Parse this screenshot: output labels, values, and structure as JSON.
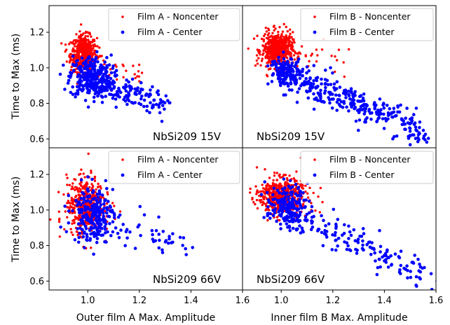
{
  "chart_data": {
    "type": "scatter",
    "layout": "2x2 grid, shared axes",
    "ylabel": "Time to Max (ms)",
    "xlabels": [
      "Outer film A Max. Amplitude",
      "Inner film B Max. Amplitude"
    ],
    "ylim": [
      0.55,
      1.35
    ],
    "yticks": [
      "0.6",
      "0.8",
      "1.0",
      "1.2"
    ],
    "ytick_values": [
      0.6,
      0.8,
      1.0,
      1.2
    ],
    "xlim": [
      0.85,
      1.6
    ],
    "xticks": [
      "1.0",
      "1.2",
      "1.4",
      "1.6"
    ],
    "xtick_values": [
      1.0,
      1.2,
      1.4,
      1.6
    ],
    "colors": {
      "noncenter": "#ff0000",
      "center": "#0000ff"
    },
    "legend_location": "upper right",
    "panels": [
      {
        "annotation": "NbSi209 15V",
        "legend": [
          "Film A - Noncenter",
          "Film A - Center"
        ],
        "series": [
          {
            "name": "Film A - Noncenter",
            "cluster": {
              "cx": 0.985,
              "cy": 1.08,
              "sx": 0.025,
              "sy": 0.05,
              "n": 520
            },
            "tail": {
              "x0": 0.95,
              "x1": 1.2,
              "y0": 1.05,
              "y1": 0.95,
              "n": 40
            }
          },
          {
            "name": "Film A - Center",
            "cluster": {
              "cx": 1.01,
              "cy": 0.95,
              "sx": 0.04,
              "sy": 0.06,
              "n": 260
            },
            "tail": {
              "x0": 1.0,
              "x1": 1.3,
              "y0": 0.92,
              "y1": 0.8,
              "n": 160
            }
          }
        ]
      },
      {
        "annotation": "NbSi209 15V",
        "legend": [
          "Film B - Noncenter",
          "Film B - Center"
        ],
        "series": [
          {
            "name": "Film B - Noncenter",
            "cluster": {
              "cx": 0.985,
              "cy": 1.1,
              "sx": 0.03,
              "sy": 0.05,
              "n": 560
            },
            "tail": {
              "x0": 1.0,
              "x1": 1.25,
              "y0": 1.08,
              "y1": 1.06,
              "n": 30
            }
          },
          {
            "name": "Film B - Center",
            "cluster": {
              "cx": 1.02,
              "cy": 0.98,
              "sx": 0.03,
              "sy": 0.04,
              "n": 120
            },
            "tail": {
              "x0": 1.0,
              "x1": 1.55,
              "y0": 0.97,
              "y1": 0.65,
              "n": 330
            }
          }
        ]
      },
      {
        "annotation": "NbSi209 66V",
        "legend": [
          "Film A - Noncenter",
          "Film A - Center"
        ],
        "series": [
          {
            "name": "Film A - Noncenter",
            "cluster": {
              "cx": 0.99,
              "cy": 1.03,
              "sx": 0.035,
              "sy": 0.08,
              "n": 420
            },
            "tail": {
              "x0": 0.88,
              "x1": 1.1,
              "y0": 0.95,
              "y1": 1.0,
              "n": 30
            }
          },
          {
            "name": "Film A - Center",
            "cluster": {
              "cx": 1.02,
              "cy": 0.98,
              "sx": 0.04,
              "sy": 0.08,
              "n": 220
            },
            "tail": {
              "x0": 1.0,
              "x1": 1.4,
              "y0": 0.95,
              "y1": 0.8,
              "n": 60
            }
          }
        ]
      },
      {
        "annotation": "NbSi209 66V",
        "legend": [
          "Film B - Noncenter",
          "Film B - Center"
        ],
        "series": [
          {
            "name": "Film B - Noncenter",
            "cluster": {
              "cx": 1.0,
              "cy": 1.08,
              "sx": 0.04,
              "sy": 0.05,
              "n": 480
            },
            "tail": {
              "x0": 0.88,
              "x1": 1.15,
              "y0": 1.07,
              "y1": 1.02,
              "n": 40
            }
          },
          {
            "name": "Film B - Center",
            "cluster": {
              "cx": 1.02,
              "cy": 1.02,
              "sx": 0.04,
              "sy": 0.06,
              "n": 160
            },
            "tail": {
              "x0": 1.0,
              "x1": 1.6,
              "y0": 1.0,
              "y1": 0.62,
              "n": 170
            }
          }
        ]
      }
    ]
  }
}
